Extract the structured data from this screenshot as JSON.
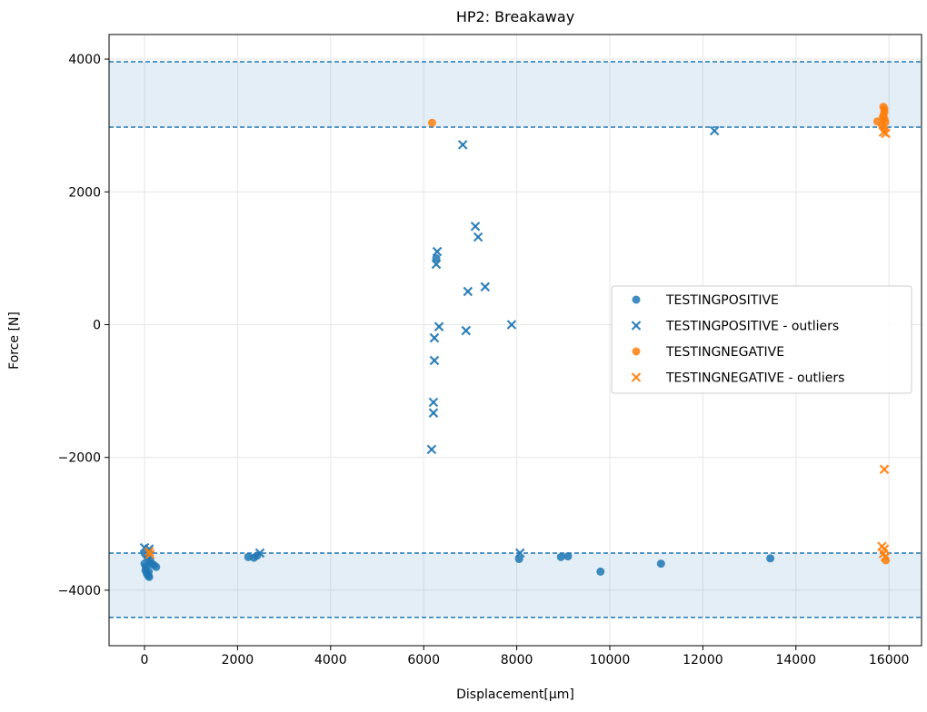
{
  "chart_data": {
    "type": "scatter",
    "title": "HP2: Breakaway",
    "xlabel": "Displacement[µm]",
    "ylabel": "Force [N]",
    "xlim": [
      -762,
      16700
    ],
    "ylim": [
      -4836,
      4370
    ],
    "xticks": [
      0,
      2000,
      4000,
      6000,
      8000,
      10000,
      12000,
      14000,
      16000
    ],
    "yticks": [
      -4000,
      -2000,
      0,
      2000,
      4000
    ],
    "grid": true,
    "legend_position": "center-right",
    "bands": [
      {
        "ymin": 2975,
        "ymax": 3960,
        "color": "#1f77b4"
      },
      {
        "ymin": -4410,
        "ymax": -3440,
        "color": "#1f77b4"
      }
    ],
    "series": [
      {
        "name": "TESTINGPOSITIVE",
        "marker": "circle",
        "color": "#1f77b4",
        "points": [
          [
            0,
            -3600
          ],
          [
            20,
            -3700
          ],
          [
            50,
            -3750
          ],
          [
            80,
            -3780
          ],
          [
            100,
            -3800
          ],
          [
            30,
            -3650
          ],
          [
            150,
            -3600
          ],
          [
            200,
            -3620
          ],
          [
            250,
            -3650
          ],
          [
            120,
            -3550
          ],
          [
            60,
            -3500
          ],
          [
            10,
            -3450
          ],
          [
            90,
            -3720
          ],
          [
            2230,
            -3500
          ],
          [
            2350,
            -3510
          ],
          [
            2420,
            -3480
          ],
          [
            6270,
            1000
          ],
          [
            8050,
            -3530
          ],
          [
            8950,
            -3500
          ],
          [
            9100,
            -3490
          ],
          [
            9800,
            -3720
          ],
          [
            11100,
            -3600
          ],
          [
            13450,
            -3520
          ]
        ]
      },
      {
        "name": "TESTINGPOSITIVE - outliers",
        "marker": "x",
        "color": "#1f77b4",
        "points": [
          [
            0,
            -3360
          ],
          [
            100,
            -3380
          ],
          [
            2480,
            -3440
          ],
          [
            8070,
            -3440
          ],
          [
            6840,
            2710
          ],
          [
            7110,
            1480
          ],
          [
            7170,
            1320
          ],
          [
            6290,
            1100
          ],
          [
            6270,
            910
          ],
          [
            7320,
            570
          ],
          [
            6950,
            500
          ],
          [
            7890,
            0
          ],
          [
            6330,
            -30
          ],
          [
            6910,
            -90
          ],
          [
            6230,
            -200
          ],
          [
            6230,
            -540
          ],
          [
            6210,
            -1170
          ],
          [
            6210,
            -1330
          ],
          [
            6170,
            -1880
          ],
          [
            12250,
            2920
          ]
        ]
      },
      {
        "name": "TESTINGNEGATIVE",
        "marker": "circle",
        "color": "#ff7f0e",
        "points": [
          [
            6180,
            3040
          ],
          [
            15880,
            3280
          ],
          [
            15900,
            3250
          ],
          [
            15900,
            3200
          ],
          [
            15880,
            3150
          ],
          [
            15900,
            3100
          ],
          [
            15750,
            3060
          ],
          [
            15850,
            3000
          ],
          [
            15900,
            2950
          ],
          [
            15920,
            3050
          ],
          [
            15870,
            3120
          ],
          [
            15930,
            -3550
          ]
        ]
      },
      {
        "name": "TESTINGNEGATIVE - outliers",
        "marker": "x",
        "color": "#ff7f0e",
        "points": [
          [
            15880,
            2900
          ],
          [
            15930,
            2880
          ],
          [
            15900,
            -2180
          ],
          [
            15850,
            -3340
          ],
          [
            15900,
            -3380
          ],
          [
            15880,
            -3450
          ],
          [
            100,
            -3420
          ],
          [
            120,
            -3460
          ],
          [
            15920,
            -3500
          ]
        ]
      }
    ]
  }
}
